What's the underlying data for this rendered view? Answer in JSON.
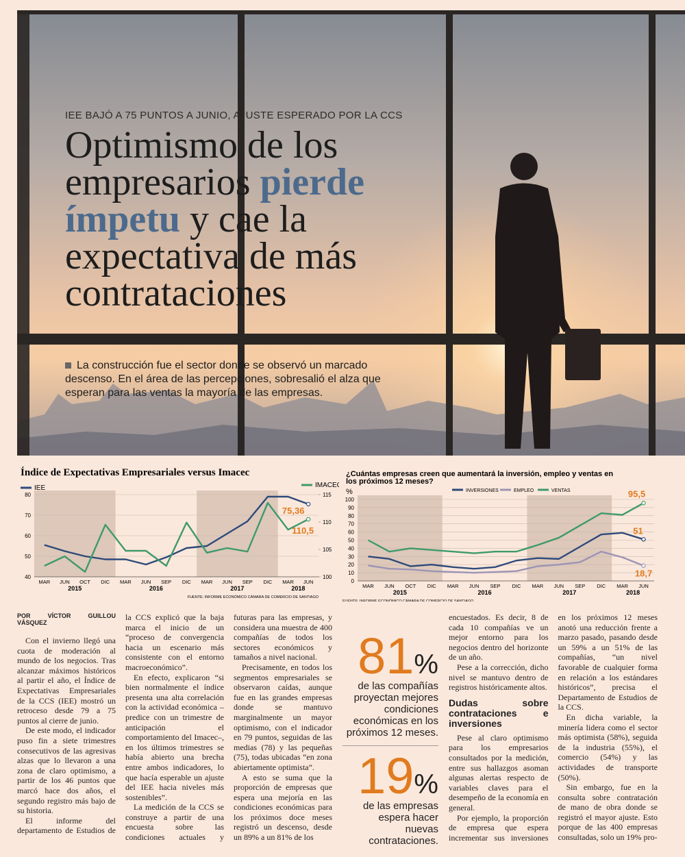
{
  "hero": {
    "kicker": "IEE BAJÓ A 75 PUNTOS A JUNIO, AJUSTE ESPERADO POR LA CCS",
    "headline_before": "Optimismo de los empresarios",
    "headline_highlight": "pierde ímpetu",
    "headline_after": "y cae la expectativa de más contrataciones",
    "lead": "La construcción fue el sector donde se observó un marcado descenso. En el área de las percepciones, sobresalió el alza que esperan para las ventas la mayoría de las empresas."
  },
  "chart_data": [
    {
      "type": "line",
      "title": "Índice de Expectativas Empresariales versus Imacec",
      "categories": [
        "MAR",
        "JUN",
        "OCT",
        "DIC",
        "MAR",
        "JUN",
        "SEP",
        "DIC",
        "MAR",
        "JUN",
        "SEP",
        "DIC",
        "MAR",
        "JUN"
      ],
      "year_labels": [
        "2015",
        "2016",
        "2017",
        "2018"
      ],
      "series": [
        {
          "name": "IEE",
          "color": "#2e4a7a",
          "values": [
            55.5,
            52.5,
            50,
            48.5,
            48.5,
            46,
            49.5,
            54,
            55,
            61,
            67,
            79,
            79,
            75.36
          ],
          "value_labels": [
            null,
            null,
            null,
            null,
            null,
            null,
            null,
            null,
            null,
            null,
            null,
            null,
            null,
            "75,36"
          ]
        },
        {
          "name": "IMACEC",
          "color": "#3f9a6b",
          "axis": "y2",
          "values": [
            102,
            103.75,
            100.9,
            109.5,
            104.75,
            104.75,
            102,
            109.9,
            104.4,
            105.25,
            104.6,
            113.5,
            108.6,
            110.5
          ],
          "value_labels": [
            null,
            null,
            null,
            null,
            null,
            null,
            null,
            null,
            null,
            null,
            null,
            null,
            null,
            "110,5"
          ]
        }
      ],
      "ylim": [
        40,
        80
      ],
      "yticks": [
        40,
        50,
        60,
        70,
        80
      ],
      "y2lim": [
        100,
        115
      ],
      "y2ticks": [
        100,
        105,
        110,
        115
      ],
      "grid": true,
      "source": "FUENTE: INFORME ECONÓMICO CÁMARA DE COMERCIO DE SANTIAGO"
    },
    {
      "type": "line",
      "title": "¿Cuántas empresas creen que aumentará la inversión, empleo y ventas en los próximos 12 meses?",
      "y_label": "%",
      "categories": [
        "MAR",
        "JUN",
        "OCT",
        "DIC",
        "MAR",
        "JUN",
        "SEP",
        "DIC",
        "MAR",
        "JUN",
        "SEP",
        "DIC",
        "MAR",
        "JUN"
      ],
      "year_labels": [
        "2015",
        "2016",
        "2017",
        "2018"
      ],
      "series": [
        {
          "name": "INVERSIONES",
          "color": "#2e4a7a",
          "values": [
            30,
            27,
            18,
            20,
            17,
            15,
            17,
            25,
            28,
            27,
            42,
            57,
            59,
            51
          ],
          "value_labels": [
            null,
            null,
            null,
            null,
            null,
            null,
            null,
            null,
            null,
            null,
            null,
            null,
            null,
            "51"
          ]
        },
        {
          "name": "EMPLEO",
          "color": "#9b94b5",
          "values": [
            19,
            15,
            14,
            12,
            11,
            10,
            11,
            12,
            18,
            20,
            23,
            36,
            29,
            18.7
          ],
          "value_labels": [
            null,
            null,
            null,
            null,
            null,
            null,
            null,
            null,
            null,
            null,
            null,
            null,
            null,
            "18,7"
          ]
        },
        {
          "name": "VENTAS",
          "color": "#3f9a6b",
          "values": [
            50,
            36,
            40,
            38,
            36,
            34,
            36,
            36,
            44,
            53,
            68,
            83,
            81,
            95.5
          ],
          "value_labels": [
            null,
            null,
            null,
            null,
            null,
            null,
            null,
            null,
            null,
            null,
            null,
            null,
            null,
            "95,5"
          ]
        }
      ],
      "ylim": [
        0,
        100
      ],
      "yticks": [
        0,
        10,
        20,
        30,
        40,
        50,
        60,
        70,
        80,
        90,
        100
      ],
      "grid": true,
      "source": "FUENTE: INFORME ECONÓMICO CÁMARA DE COMERCIO DE SANTIAGO"
    }
  ],
  "article": {
    "byline": "POR VÍCTOR GUILLOU VÁSQUEZ",
    "part1": [
      "Con el invierno llegó una cuota de moderación al mundo de los negocios. Tras alcanzar máximos históricos al partir el año, el Índice de Expectativas Empresariales de la CCS (IEE) mostró un retroceso desde 79 a 75 puntos al cierre de junio.",
      "De este modo, el indicador puso fin a siete trimestres consecutivos de las agresivas alzas que lo llevaron a una zona de claro optimismo, a partir de los 46 puntos que marcó hace dos años, el segundo registro más bajo de su historia.",
      "El informe del departamento de Estudios de la CCS explicó que la baja marca el inicio de un “proceso de convergencia hacia un escenario más consistente con el entorno macroeconómico”.",
      "En efecto, explicaron “si bien normalmente el índice presenta una alta correlación con la actividad económica –predice con un trimestre de anticipación el comportamiento del Imacec–, en los últimos trimestres se había abierto una brecha entre ambos indicadores, lo que hacía esperable un ajuste del IEE hacia niveles más sostenibles”.",
      "La medición de la CCS se construye a partir de una encuesta sobre las condiciones actuales y futuras para las empresas, y considera una muestra de 400 compañías de todos los sectores económicos y tamaños a nivel nacional.",
      "Precisamente, en todos los segmentos empresariales se observaron caídas, aunque fue en las grandes empresas donde se mantuvo marginalmente un mayor optimismo, con el indicador en 79 puntos, seguidas de las medias (78) y las pequeñas (75), todas ubicadas “en zona abiertamente optimista”.",
      "A esto se suma que la proporción de empresas que espera una mejoría en las condiciones económicas para los próximos doce meses registró un descenso, desde un 89% a un 81% de los"
    ],
    "part2_intro": [
      "encuestados. Es decir, 8 de cada 10 compañías ve un mejor entorno para los negocios dentro del horizonte de un año.",
      "Pese a la corrección, dicho nivel se mantuvo dentro de registros históricamente altos."
    ],
    "subhead": "Dudas sobre contrataciones e inversiones",
    "part2": [
      "Pese al claro optimismo para los empresarios consultados por la medición, entre sus hallazgos asoman algunas alertas respecto de variables claves para el desempeño de la economía en general.",
      "Por ejemplo, la proporción de empresa que espera incrementar sus inversiones en los próximos 12 meses anotó una reducción frente a marzo pasado, pasando desde un 59% a un 51% de las compañías, “un nivel favorable de cualquier forma en relación a los estándares históricos”, precisa el Departamento de Estudios de la CCS.",
      "En dicha variable, la minería lidera como el sector más optimista (58%), seguida de la industria (55%), el comercio (54%) y las actividades de transporte (50%).",
      "Sin embargo, fue en la consulta sobre contratación de mano de obra donde se registró el mayor ajuste. Esto porque de las 400 empresas consultadas, solo un 19% pro-"
    ]
  },
  "pull_quotes": [
    {
      "number": "81",
      "unit": "%",
      "text": "de las compañías proyectan mejores condiciones económicas en los próximos 12 meses."
    },
    {
      "number": "19",
      "unit": "%",
      "text": "de las empresas espera hacer nuevas contrataciones."
    }
  ]
}
